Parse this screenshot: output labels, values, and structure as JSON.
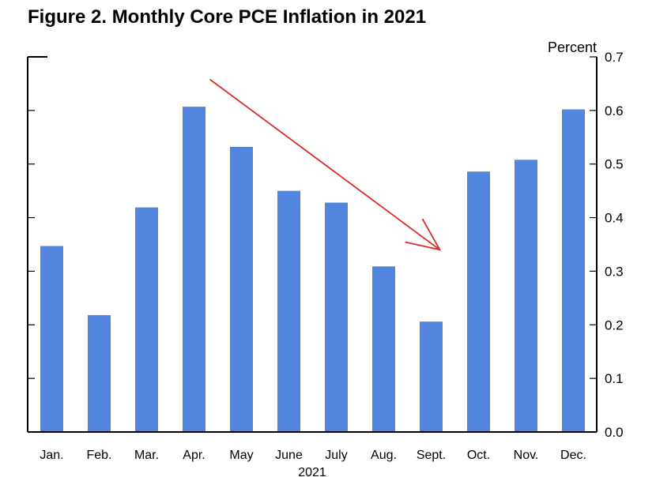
{
  "chart_data": {
    "type": "bar",
    "title": "Figure 2. Monthly Core PCE Inflation in 2021",
    "ylabel": "Percent",
    "xlabel": "2021",
    "categories": [
      "Jan.",
      "Feb.",
      "Mar.",
      "Apr.",
      "May",
      "June",
      "July",
      "Aug.",
      "Sept.",
      "Oct.",
      "Nov.",
      "Dec."
    ],
    "values": [
      0.347,
      0.218,
      0.419,
      0.607,
      0.532,
      0.45,
      0.428,
      0.309,
      0.206,
      0.486,
      0.508,
      0.602
    ],
    "ylim": [
      0,
      0.7
    ],
    "yticks": [
      "0.0",
      "0.1",
      "0.2",
      "0.3",
      "0.4",
      "0.5",
      "0.6",
      "0.7"
    ],
    "bar_color": "#5285dd",
    "annotation": {
      "type": "arrow",
      "color": "#dd2a2a",
      "from": {
        "category": "Apr.",
        "value": 0.658
      },
      "to": {
        "category": "Sept.",
        "value": 0.34
      }
    },
    "grid": false
  }
}
